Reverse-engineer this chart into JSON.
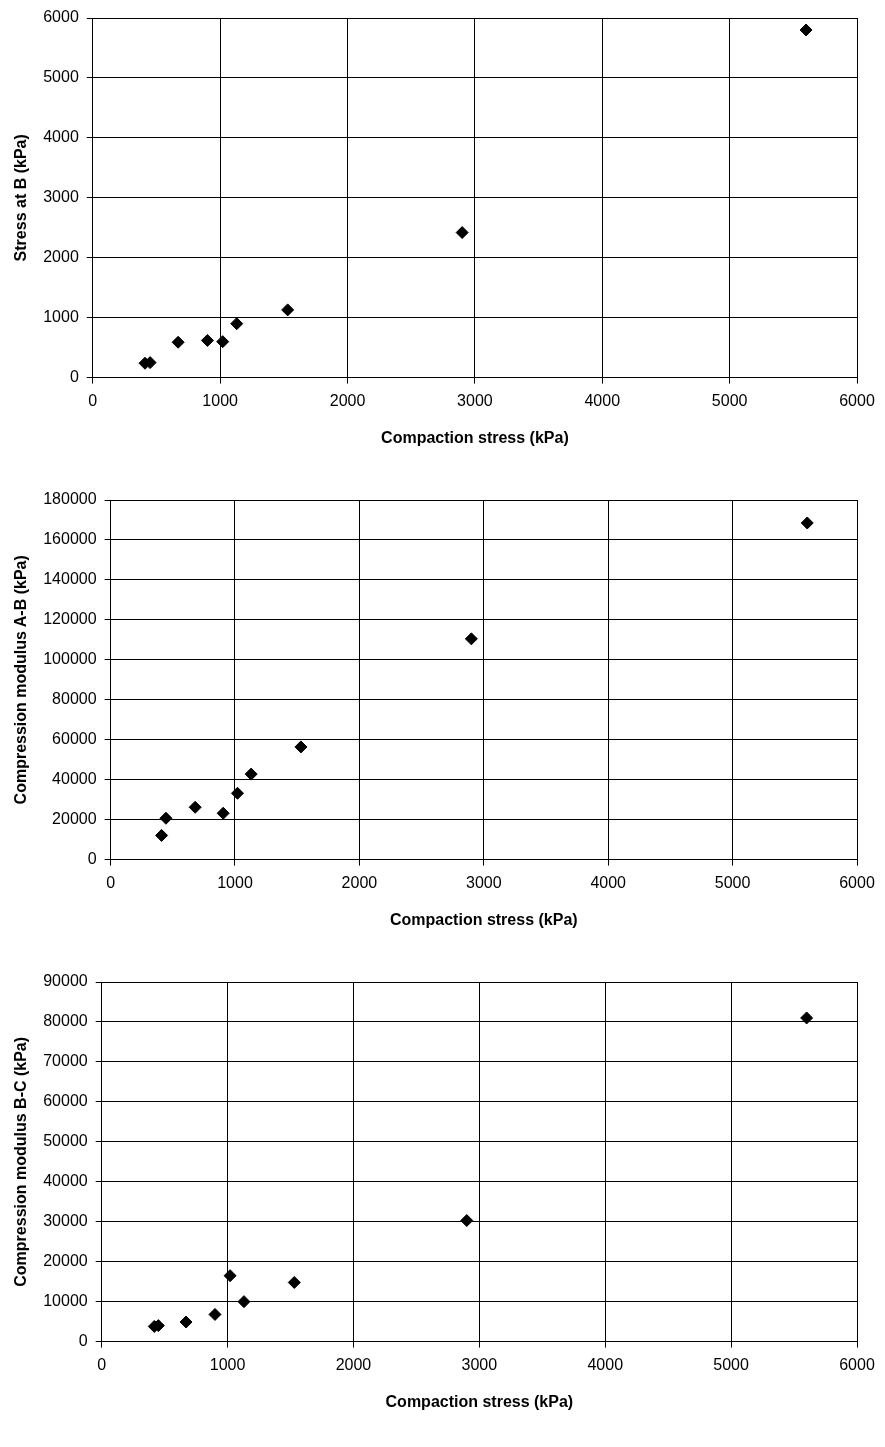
{
  "chart_data": [
    {
      "type": "scatter",
      "xlabel": "Compaction stress (kPa)",
      "ylabel": "Stress at B (kPa)",
      "marker": "diamond",
      "grid": true,
      "x": [
        410,
        450,
        670,
        900,
        1020,
        1130,
        1530,
        2900,
        5600
      ],
      "series": [
        {
          "color": "#000000",
          "values": [
            240,
            250,
            590,
            620,
            600,
            900,
            1130,
            2420,
            5800
          ]
        }
      ],
      "xlim": [
        0,
        6000
      ],
      "xticks": [
        0,
        1000,
        2000,
        3000,
        4000,
        5000,
        6000
      ],
      "ylim": [
        0,
        6000
      ],
      "yticks": [
        0,
        1000,
        2000,
        3000,
        4000,
        5000,
        6000
      ]
    },
    {
      "type": "scatter",
      "xlabel": "Compaction stress (kPa)",
      "ylabel": "Compression modulus A-B (kPa)",
      "marker": "diamond",
      "grid": true,
      "x": [
        410,
        445,
        680,
        905,
        1020,
        1130,
        1530,
        2900,
        5600
      ],
      "series": [
        {
          "color": "#000000",
          "values": [
            12100,
            20700,
            26200,
            23200,
            33200,
            42800,
            56400,
            110500,
            168500
          ]
        }
      ],
      "xlim": [
        0,
        6000
      ],
      "xticks": [
        0,
        1000,
        2000,
        3000,
        4000,
        5000,
        6000
      ],
      "ylim": [
        0,
        180000
      ],
      "yticks": [
        0,
        20000,
        40000,
        60000,
        80000,
        100000,
        120000,
        140000,
        160000,
        180000
      ]
    },
    {
      "type": "scatter",
      "xlabel": "Compaction stress (kPa)",
      "ylabel": "Compression modulus B-C (kPa)",
      "marker": "diamond",
      "grid": true,
      "x": [
        418,
        450,
        670,
        900,
        1020,
        1130,
        1530,
        2900,
        5600
      ],
      "series": [
        {
          "color": "#000000",
          "values": [
            3800,
            4000,
            4900,
            6800,
            16500,
            10000,
            14800,
            30300,
            81000
          ]
        }
      ],
      "xlim": [
        0,
        6000
      ],
      "xticks": [
        0,
        1000,
        2000,
        3000,
        4000,
        5000,
        6000
      ],
      "ylim": [
        0,
        90000
      ],
      "yticks": [
        0,
        10000,
        20000,
        30000,
        40000,
        50000,
        60000,
        70000,
        80000,
        90000
      ]
    }
  ]
}
